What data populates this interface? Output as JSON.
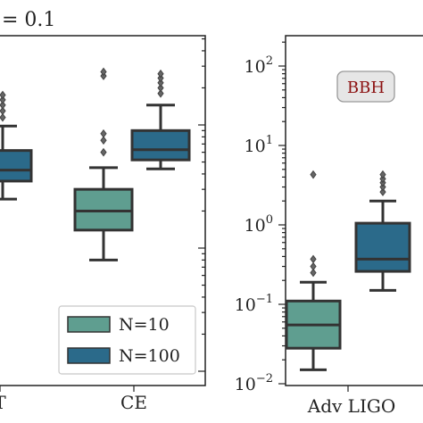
{
  "figure": {
    "title_fragment": "= 0.1"
  },
  "colors": {
    "n10": "#5f9e90",
    "n100": "#2b6a8a",
    "outline": "#333333",
    "bbh_text": "#8b1010",
    "bbh_bg": "#e6e6e6"
  },
  "chart_data": [
    {
      "type": "box",
      "panel": "left (cropped)",
      "yscale": "log",
      "categories": [
        "T",
        "CE"
      ],
      "legend": {
        "position": "lower-right",
        "entries": [
          "N=10",
          "N=100"
        ]
      },
      "series": [
        {
          "name": "N=10",
          "boxes": [
            null,
            {
              "category": "CE",
              "whislo": 0.8,
              "q1": 1.4,
              "median": 2.0,
              "q3": 3.0,
              "whishi": 4.5,
              "fliers": [
                6.0,
                7.5,
                8.5,
                25,
                27
              ]
            }
          ]
        },
        {
          "name": "N=100",
          "boxes": [
            {
              "category": "T",
              "whislo": 2.5,
              "q1": 3.5,
              "median": 4.3,
              "q3": 6.2,
              "whishi": 9.8,
              "fliers": [
                11.5,
                13,
                14.5,
                16,
                17.5
              ]
            },
            {
              "category": "CE",
              "whislo": 4.4,
              "q1": 5.2,
              "median": 6.3,
              "q3": 9.0,
              "whishi": 14.5,
              "fliers": [
                18,
                20,
                22,
                24,
                26
              ]
            }
          ]
        }
      ]
    },
    {
      "type": "box",
      "panel": "right",
      "yscale": "log",
      "ylim": [
        0.01,
        200
      ],
      "yticks": [
        0.01,
        0.1,
        1,
        10,
        100
      ],
      "ytick_labels": [
        {
          "base": "10",
          "exp": "−2"
        },
        {
          "base": "10",
          "exp": "−1"
        },
        {
          "base": "10",
          "exp": "0"
        },
        {
          "base": "10",
          "exp": "1"
        },
        {
          "base": "10",
          "exp": "2"
        }
      ],
      "categories": [
        "Adv LIGO"
      ],
      "annotation": "BBH",
      "series": [
        {
          "name": "N=10",
          "boxes": [
            {
              "category": "Adv LIGO",
              "whislo": 0.015,
              "q1": 0.028,
              "median": 0.055,
              "q3": 0.11,
              "whishi": 0.19,
              "fliers": [
                0.25,
                0.3,
                0.37,
                4.3
              ]
            }
          ]
        },
        {
          "name": "N=100",
          "boxes": [
            {
              "category": "Adv LIGO",
              "whislo": 0.15,
              "q1": 0.26,
              "median": 0.37,
              "q3": 1.05,
              "whishi": 2.0,
              "fliers": [
                2.6,
                3.0,
                3.4,
                3.8,
                4.3
              ]
            }
          ]
        }
      ]
    }
  ]
}
